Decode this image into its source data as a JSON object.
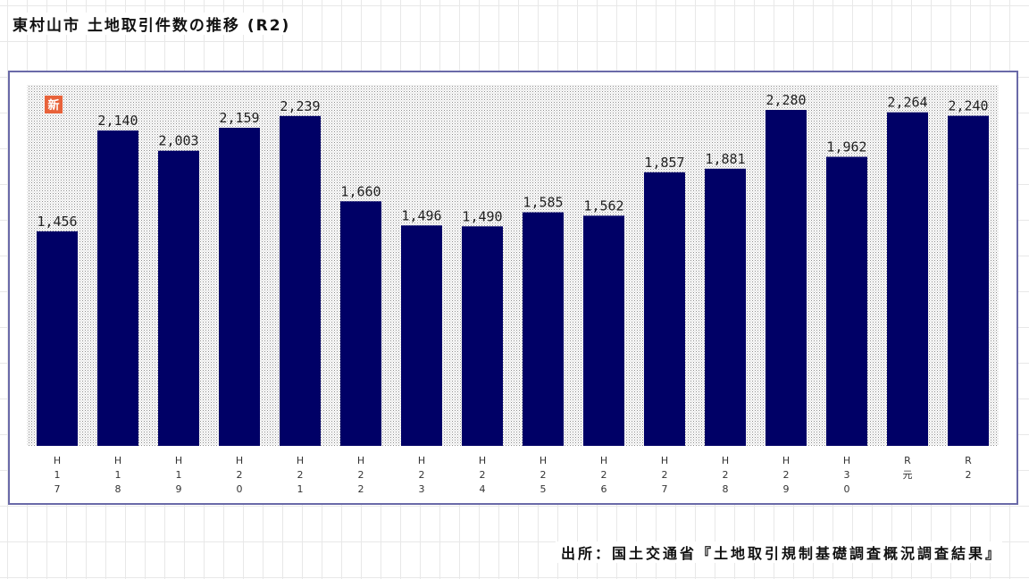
{
  "title": "東村山市 土地取引件数の推移 (R2)",
  "source": "出所：国土交通省『土地取引規制基礎調査概況調査結果』",
  "badge": "新",
  "colors": {
    "bar": "#000066",
    "frame": "#6a6aa8",
    "badge": "#e8623a"
  },
  "chart_data": {
    "type": "bar",
    "categories": [
      "H17",
      "H18",
      "H19",
      "H20",
      "H21",
      "H22",
      "H23",
      "H24",
      "H25",
      "H26",
      "H27",
      "H28",
      "H29",
      "H30",
      "R元",
      "R2"
    ],
    "tick_labels": [
      [
        "H",
        "1",
        "7"
      ],
      [
        "H",
        "1",
        "8"
      ],
      [
        "H",
        "1",
        "9"
      ],
      [
        "H",
        "2",
        "0"
      ],
      [
        "H",
        "2",
        "1"
      ],
      [
        "H",
        "2",
        "2"
      ],
      [
        "H",
        "2",
        "3"
      ],
      [
        "H",
        "2",
        "4"
      ],
      [
        "H",
        "2",
        "5"
      ],
      [
        "H",
        "2",
        "6"
      ],
      [
        "H",
        "2",
        "7"
      ],
      [
        "H",
        "2",
        "8"
      ],
      [
        "H",
        "2",
        "9"
      ],
      [
        "H",
        "3",
        "0"
      ],
      [
        "R",
        "元"
      ],
      [
        "R",
        "2"
      ]
    ],
    "values": [
      1456,
      2140,
      2003,
      2159,
      2239,
      1660,
      1496,
      1490,
      1585,
      1562,
      1857,
      1881,
      2280,
      1962,
      2264,
      2240
    ],
    "data_labels": [
      "1,456",
      "2,140",
      "2,003",
      "2,159",
      "2,239",
      "1,660",
      "1,496",
      "1,490",
      "1,585",
      "1,562",
      "1,857",
      "1,881",
      "2,280",
      "1,962",
      "2,264",
      "2,240"
    ],
    "ylim": [
      0,
      2450
    ],
    "xlabel": "",
    "ylabel": "",
    "grid": false,
    "legend": "none"
  }
}
